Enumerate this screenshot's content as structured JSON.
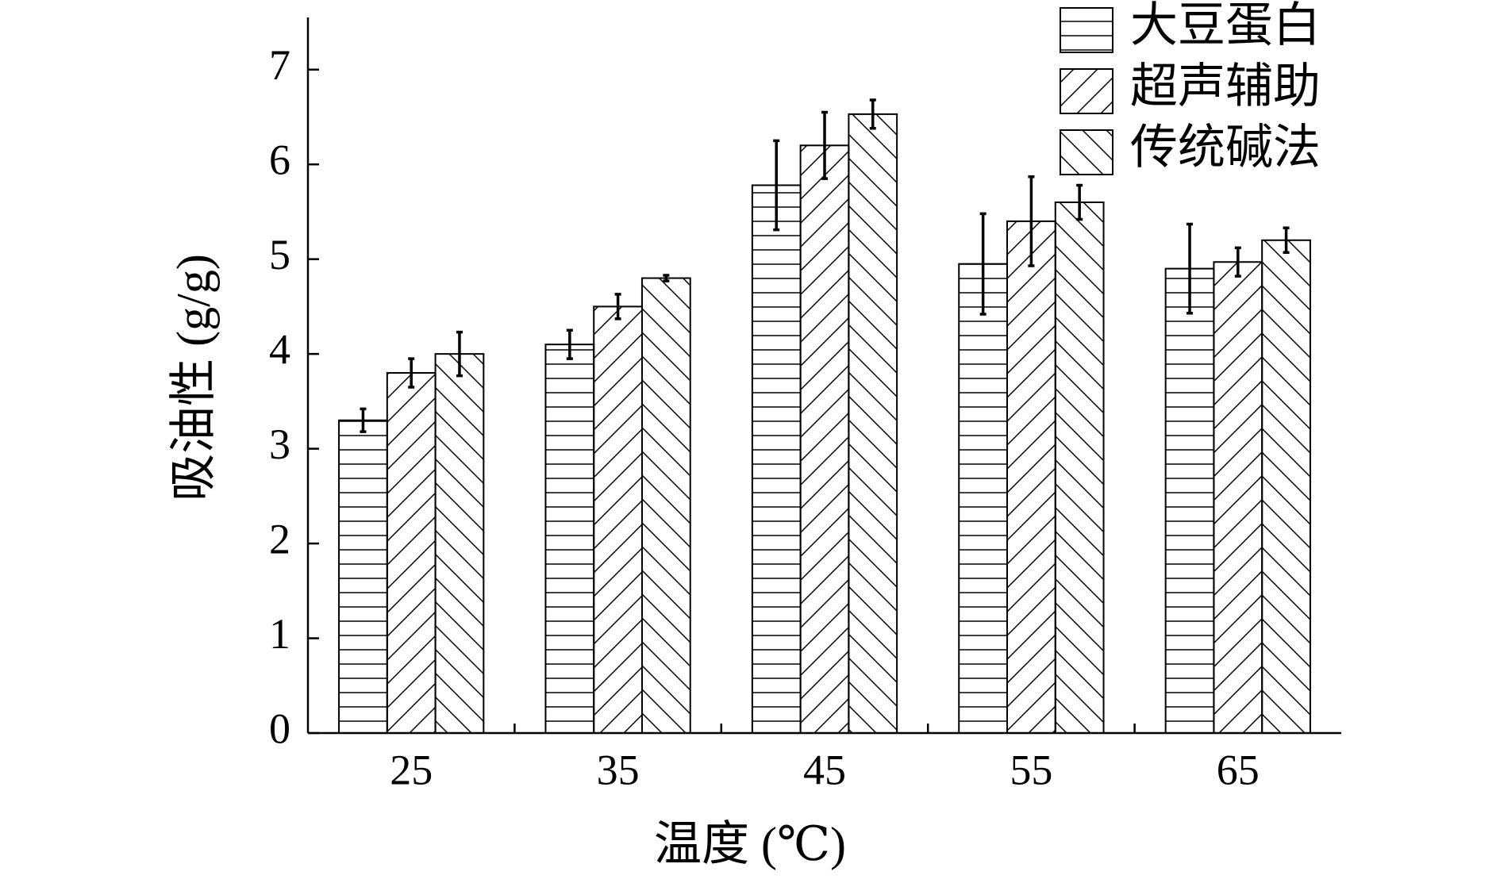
{
  "chart_data": {
    "type": "bar",
    "x_label": "温度 (℃)",
    "y_label": "吸油性 (g/g)",
    "categories": [
      "25",
      "35",
      "45",
      "55",
      "65"
    ],
    "series": [
      {
        "name": "大豆蛋白",
        "color": "#000000",
        "hatch": "horizontal",
        "values": [
          3.3,
          4.1,
          5.78,
          4.95,
          4.9
        ],
        "errors": [
          0.12,
          0.15,
          0.47,
          0.53,
          0.47
        ]
      },
      {
        "name": "超声辅助",
        "color": "#000000",
        "hatch": "forward",
        "values": [
          3.8,
          4.5,
          6.2,
          5.4,
          4.97
        ],
        "errors": [
          0.15,
          0.13,
          0.35,
          0.47,
          0.15
        ]
      },
      {
        "name": "传统碱法",
        "color": "#000000",
        "hatch": "backward",
        "values": [
          4.0,
          4.8,
          6.53,
          5.6,
          5.2
        ],
        "errors": [
          0.23,
          0.03,
          0.15,
          0.18,
          0.13
        ]
      }
    ],
    "ylim": [
      0,
      7.5
    ],
    "yticks": [
      0,
      1,
      2,
      3,
      4,
      5,
      6,
      7
    ],
    "legend": "upper right"
  }
}
